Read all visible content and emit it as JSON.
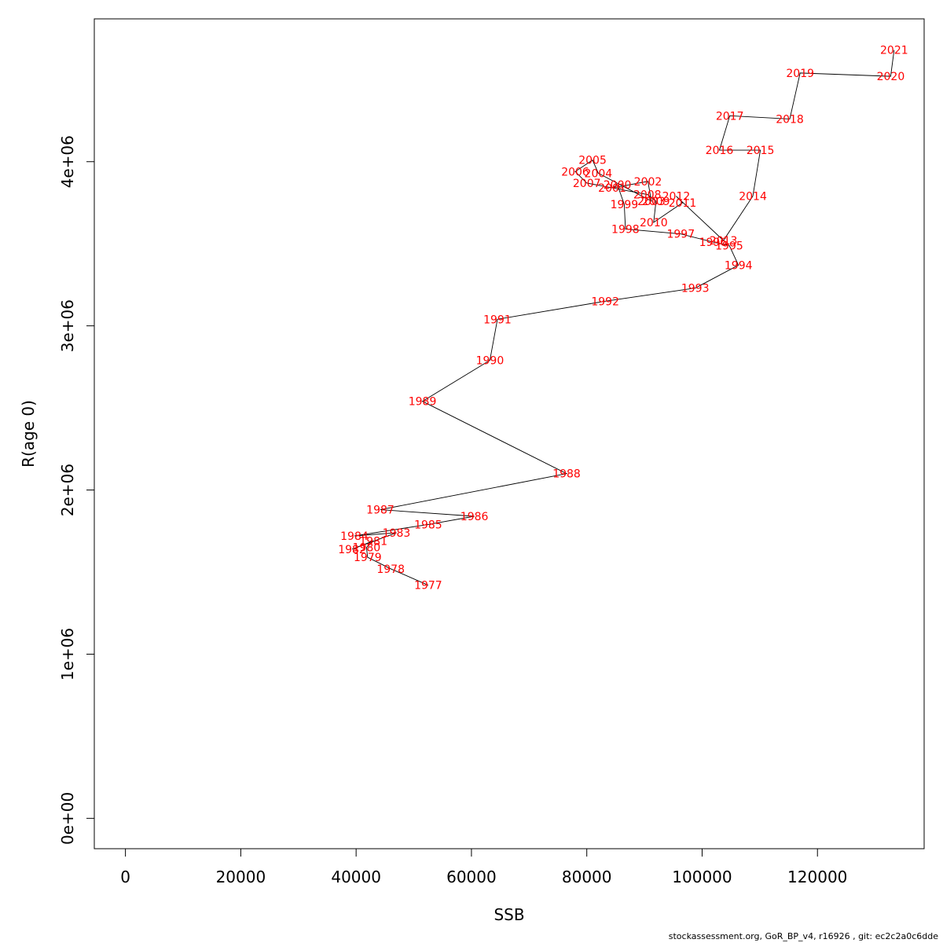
{
  "footer": "stockassessment.org, GoR_BP_v4, r16926 , git: ec2c2a0c6dde",
  "chart_data": {
    "type": "line",
    "xlabel": "SSB",
    "ylabel": "R(age 0)",
    "xlim": [
      -5400,
      138500
    ],
    "ylim": [
      -185000,
      4870000
    ],
    "x_ticks": [
      0,
      20000,
      40000,
      60000,
      80000,
      100000,
      120000
    ],
    "x_tick_labels": [
      "0",
      "20000",
      "40000",
      "60000",
      "80000",
      "100000",
      "120000"
    ],
    "y_ticks": [
      0,
      1000000,
      2000000,
      3000000,
      4000000
    ],
    "y_tick_labels": [
      "0e+00",
      "1e+06",
      "2e+06",
      "3e+06",
      "4e+06"
    ],
    "line_color": "#000000",
    "label_color": "#ff0000",
    "grid": false,
    "points": [
      {
        "year": "1977",
        "x": 52500,
        "y": 1420000
      },
      {
        "year": "1978",
        "x": 46000,
        "y": 1520000
      },
      {
        "year": "1979",
        "x": 42000,
        "y": 1590000
      },
      {
        "year": "1980",
        "x": 41800,
        "y": 1650000
      },
      {
        "year": "1981",
        "x": 43000,
        "y": 1690000
      },
      {
        "year": "1982",
        "x": 39300,
        "y": 1640000
      },
      {
        "year": "1983",
        "x": 47000,
        "y": 1740000
      },
      {
        "year": "1984",
        "x": 39700,
        "y": 1720000
      },
      {
        "year": "1985",
        "x": 52500,
        "y": 1790000
      },
      {
        "year": "1986",
        "x": 60500,
        "y": 1840000
      },
      {
        "year": "1987",
        "x": 44200,
        "y": 1880000
      },
      {
        "year": "1988",
        "x": 76500,
        "y": 2100000
      },
      {
        "year": "1989",
        "x": 51500,
        "y": 2540000
      },
      {
        "year": "1990",
        "x": 63200,
        "y": 2790000
      },
      {
        "year": "1991",
        "x": 64500,
        "y": 3040000
      },
      {
        "year": "1992",
        "x": 83200,
        "y": 3150000
      },
      {
        "year": "1993",
        "x": 98800,
        "y": 3230000
      },
      {
        "year": "1994",
        "x": 106300,
        "y": 3370000
      },
      {
        "year": "1995",
        "x": 104700,
        "y": 3490000
      },
      {
        "year": "1996",
        "x": 101900,
        "y": 3510000
      },
      {
        "year": "1997",
        "x": 96300,
        "y": 3560000
      },
      {
        "year": "1998",
        "x": 86700,
        "y": 3590000
      },
      {
        "year": "1999",
        "x": 86500,
        "y": 3740000
      },
      {
        "year": "2000",
        "x": 85300,
        "y": 3860000
      },
      {
        "year": "2001",
        "x": 84400,
        "y": 3840000
      },
      {
        "year": "2002",
        "x": 90600,
        "y": 3880000
      },
      {
        "year": "2003",
        "x": 91200,
        "y": 3760000
      },
      {
        "year": "2004",
        "x": 82000,
        "y": 3930000
      },
      {
        "year": "2005",
        "x": 81000,
        "y": 4010000
      },
      {
        "year": "2006",
        "x": 78000,
        "y": 3940000
      },
      {
        "year": "2007",
        "x": 80000,
        "y": 3870000
      },
      {
        "year": "2008",
        "x": 90500,
        "y": 3800000
      },
      {
        "year": "2009",
        "x": 92000,
        "y": 3760000
      },
      {
        "year": "2010",
        "x": 91600,
        "y": 3630000
      },
      {
        "year": "2011",
        "x": 96600,
        "y": 3750000
      },
      {
        "year": "2012",
        "x": 95500,
        "y": 3790000
      },
      {
        "year": "2013",
        "x": 103700,
        "y": 3520000
      },
      {
        "year": "2014",
        "x": 108800,
        "y": 3790000
      },
      {
        "year": "2015",
        "x": 110100,
        "y": 4070000
      },
      {
        "year": "2016",
        "x": 103000,
        "y": 4070000
      },
      {
        "year": "2017",
        "x": 104800,
        "y": 4280000
      },
      {
        "year": "2018",
        "x": 115200,
        "y": 4260000
      },
      {
        "year": "2019",
        "x": 117000,
        "y": 4540000
      },
      {
        "year": "2020",
        "x": 132700,
        "y": 4520000
      },
      {
        "year": "2021",
        "x": 133300,
        "y": 4680000
      }
    ]
  }
}
